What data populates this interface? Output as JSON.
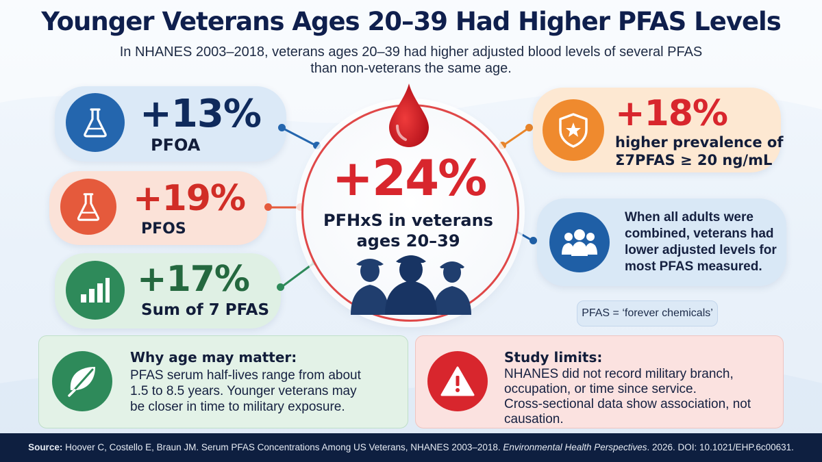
{
  "title": "Younger Veterans Ages 20–39 Had Higher PFAS Levels",
  "subtitle": "In NHANES 2003–2018, veterans ages 20–39 had higher adjusted blood levels of several PFAS than non-veterans the same age.",
  "stats": {
    "pfoa": {
      "value": "+13%",
      "label": "PFOA",
      "icon": "flask-icon"
    },
    "pfos": {
      "value": "+19%",
      "label": "PFOS",
      "icon": "flask-icon"
    },
    "sum7": {
      "value": "+17%",
      "label": "Sum of 7 PFAS",
      "icon": "bar-chart-icon"
    },
    "prevalence": {
      "value": "+18%",
      "line1": "higher prevalence of",
      "line2": "Σ7PFAS ≥ 20 ng/mL",
      "icon": "shield-star-icon"
    }
  },
  "center": {
    "value": "+24%",
    "line1": "PFHxS in veterans",
    "line2": "ages 20–39",
    "icons": [
      "blood-drop-icon",
      "veterans-silhouette-icon"
    ]
  },
  "all_adults": {
    "lines": [
      "When all adults were",
      "combined, veterans had",
      "lower adjusted levels for",
      "most PFAS measured."
    ],
    "icon": "people-group-icon"
  },
  "note": "PFAS = ‘forever chemicals’",
  "why_age": {
    "heading": "Why age may matter:",
    "lines": [
      "PFAS serum half-lives range from about",
      "1.5 to 8.5 years. Younger veterans may",
      "be closer in time to military exposure."
    ],
    "icon": "leaf-icon"
  },
  "limits": {
    "heading": "Study limits:",
    "lines": [
      "NHANES did not record military branch,",
      "occupation, or time since service.",
      "Cross-sectional data show association, not",
      "causation."
    ],
    "icon": "warning-icon"
  },
  "footer": {
    "label": "Source:",
    "text": " Hoover C, Costello E, Braun JM. Serum PFAS Concentrations Among US Veterans, NHANES 2003–2018. ",
    "journal": "Environmental Health Perspectives",
    "tail": ". 2026. DOI: 10.1021/EHP.6c00631."
  },
  "colors": {
    "navy": "#0f1f4d",
    "blue": "#1f5fa6",
    "orange": "#e8852a",
    "red": "#d8262d",
    "green": "#2e8a5a"
  }
}
